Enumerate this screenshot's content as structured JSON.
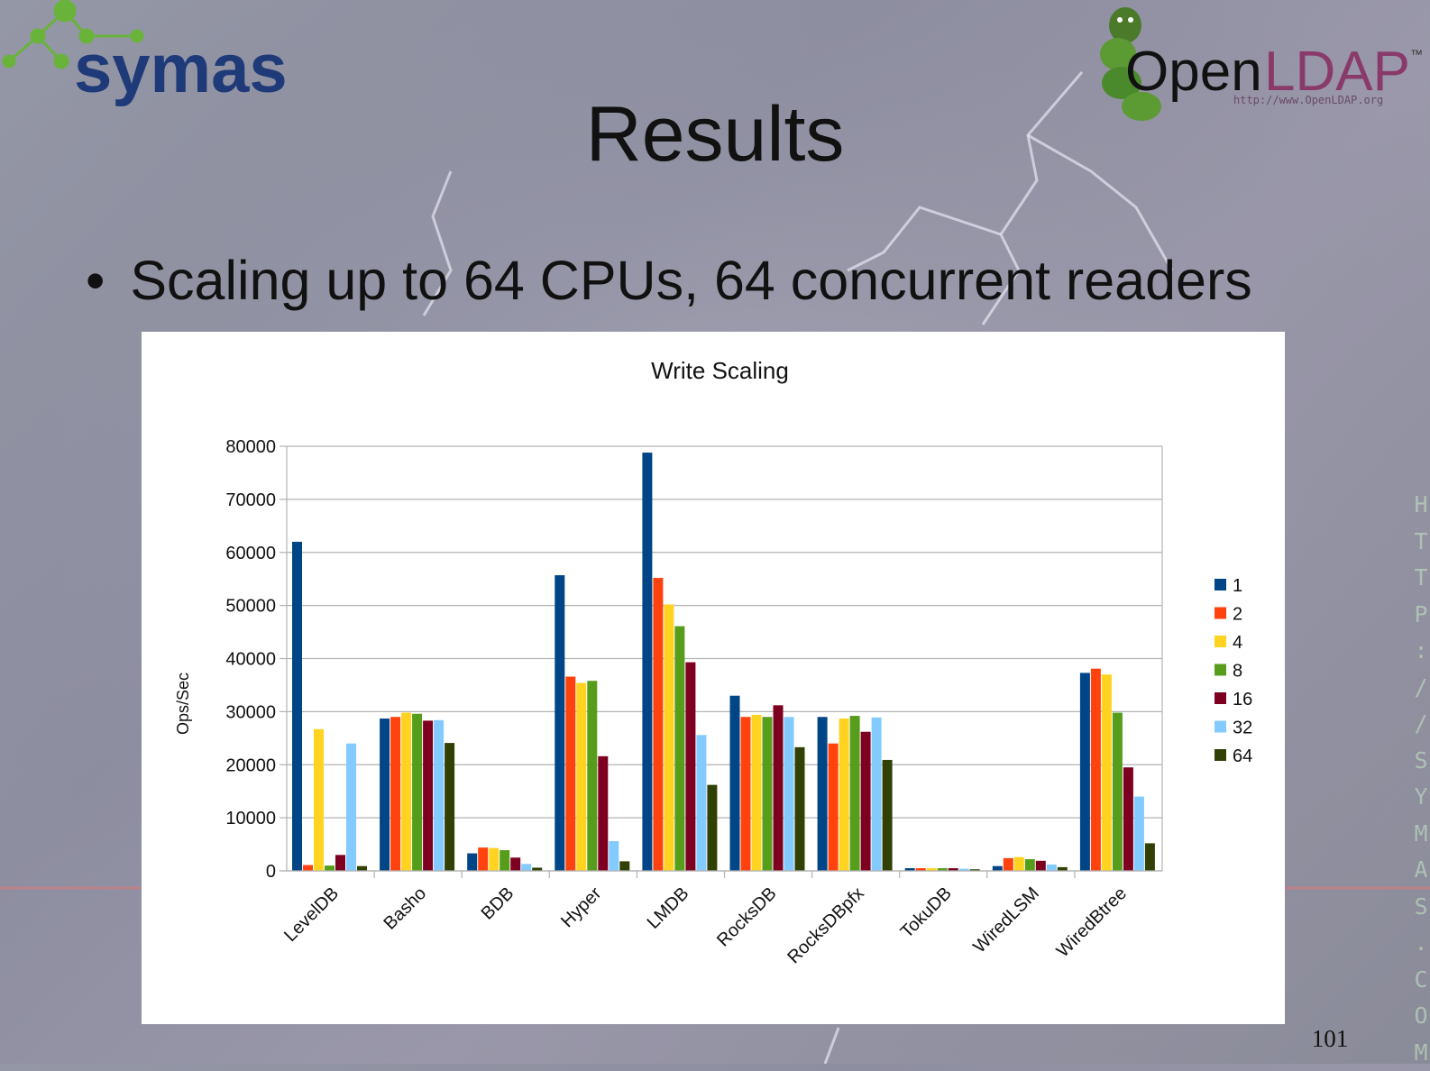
{
  "slide": {
    "title": "Results",
    "bullet": "Scaling up to 64 CPUs, 64 concurrent readers",
    "page_number": "101",
    "side_url_chars": [
      "H",
      "T",
      "T",
      "P",
      ":",
      "/",
      "/",
      "S",
      "Y",
      "M",
      "A",
      "S",
      ".",
      "C",
      "O",
      "M"
    ]
  },
  "logos": {
    "symas": {
      "text": "symas",
      "color": "#1e3a78",
      "accent": "#6ab33b"
    },
    "openldap": {
      "open": "Open",
      "ldap": "LDAP",
      "tm": "™",
      "url": "http://www.OpenLDAP.org"
    }
  },
  "chart_data": {
    "type": "bar",
    "title": "Write Scaling",
    "ylabel": "Ops/Sec",
    "xlabel": "",
    "ylim": [
      0,
      80000
    ],
    "yticks": [
      0,
      10000,
      20000,
      30000,
      40000,
      50000,
      60000,
      70000,
      80000
    ],
    "grid": true,
    "legend_position": "right",
    "categories": [
      "LevelDB",
      "Basho",
      "BDB",
      "Hyper",
      "LMDB",
      "RocksDB",
      "RocksDBpfx",
      "TokuDB",
      "WiredLSM",
      "WiredBtree"
    ],
    "series": [
      {
        "name": "1",
        "color": "#004586",
        "values": [
          62000,
          28700,
          3300,
          55700,
          78800,
          33000,
          29000,
          500,
          900,
          37300
        ]
      },
      {
        "name": "2",
        "color": "#ff420e",
        "values": [
          1100,
          29000,
          4400,
          36600,
          55200,
          29000,
          24000,
          500,
          2400,
          38100
        ]
      },
      {
        "name": "4",
        "color": "#ffd320",
        "values": [
          26700,
          29800,
          4300,
          35400,
          50200,
          29400,
          28700,
          500,
          2600,
          37000
        ]
      },
      {
        "name": "8",
        "color": "#579d1c",
        "values": [
          1000,
          29600,
          3900,
          35800,
          46100,
          29000,
          29200,
          500,
          2200,
          29800
        ]
      },
      {
        "name": "16",
        "color": "#7e0021",
        "values": [
          3000,
          28300,
          2500,
          21600,
          39300,
          31200,
          26200,
          500,
          1900,
          19500
        ]
      },
      {
        "name": "32",
        "color": "#83caff",
        "values": [
          24000,
          28400,
          1300,
          5600,
          25600,
          29000,
          28900,
          400,
          1200,
          14000
        ]
      },
      {
        "name": "64",
        "color": "#314004",
        "values": [
          900,
          24100,
          600,
          1800,
          16200,
          23300,
          20900,
          300,
          700,
          5200
        ]
      }
    ]
  }
}
